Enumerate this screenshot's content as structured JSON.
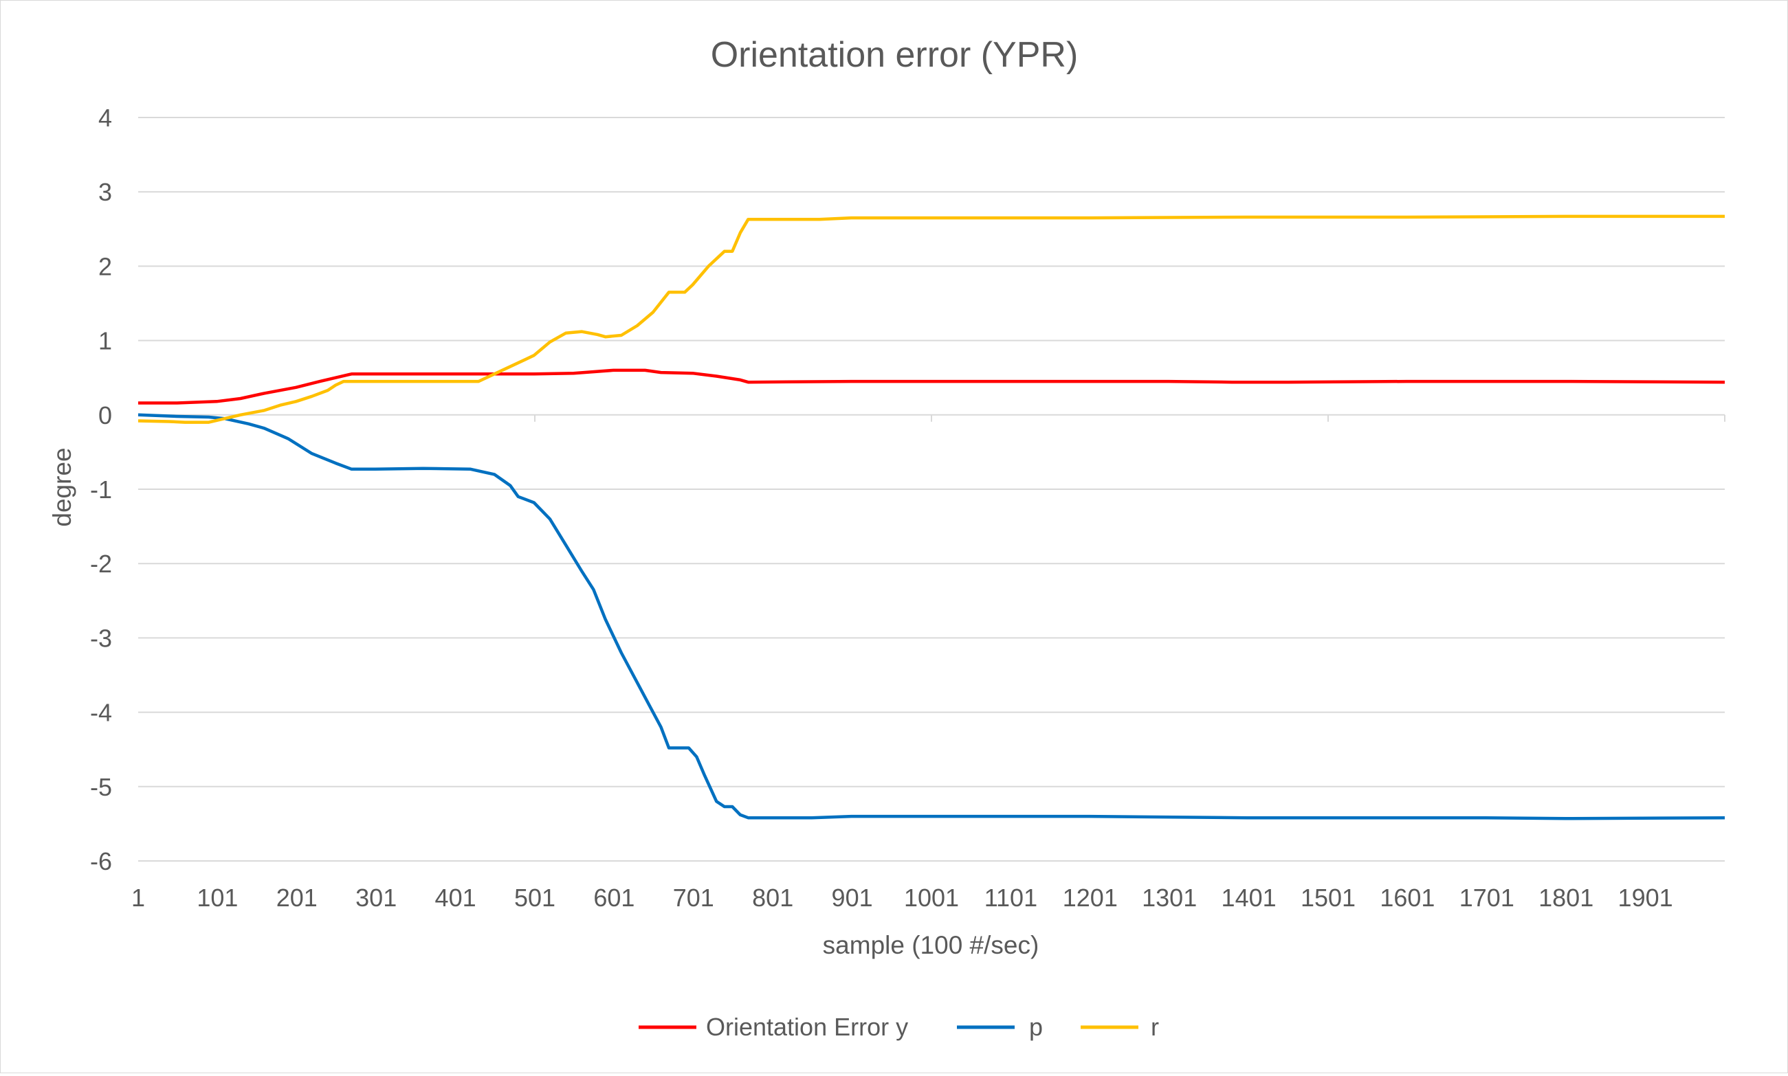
{
  "chart_data": {
    "type": "line",
    "title": "Orientation error (YPR)",
    "xlabel": "sample (100 #/sec)",
    "ylabel": "degree",
    "xlim": [
      1,
      2001
    ],
    "ylim": [
      -6,
      4
    ],
    "yticks": [
      4,
      3,
      2,
      1,
      0,
      -1,
      -2,
      -3,
      -4,
      -5,
      -6
    ],
    "xtick_labels": [
      "1",
      "101",
      "201",
      "301",
      "401",
      "501",
      "601",
      "701",
      "801",
      "901",
      "1001",
      "1101",
      "1201",
      "1301",
      "1401",
      "1501",
      "1601",
      "1701",
      "1801",
      "1901"
    ],
    "grid": true,
    "legend_position": "bottom",
    "series": [
      {
        "name": "Orientation Error y",
        "color": "#ff0000",
        "points": [
          [
            1,
            0.16
          ],
          [
            50,
            0.16
          ],
          [
            100,
            0.18
          ],
          [
            130,
            0.22
          ],
          [
            160,
            0.29
          ],
          [
            200,
            0.37
          ],
          [
            230,
            0.45
          ],
          [
            270,
            0.55
          ],
          [
            350,
            0.55
          ],
          [
            430,
            0.55
          ],
          [
            500,
            0.55
          ],
          [
            550,
            0.56
          ],
          [
            600,
            0.6
          ],
          [
            640,
            0.6
          ],
          [
            660,
            0.57
          ],
          [
            700,
            0.56
          ],
          [
            730,
            0.52
          ],
          [
            760,
            0.47
          ],
          [
            770,
            0.44
          ],
          [
            900,
            0.45
          ],
          [
            1100,
            0.45
          ],
          [
            1300,
            0.45
          ],
          [
            1380,
            0.44
          ],
          [
            1450,
            0.44
          ],
          [
            1600,
            0.45
          ],
          [
            1800,
            0.45
          ],
          [
            2001,
            0.44
          ]
        ]
      },
      {
        "name": "p",
        "color": "#0070c0",
        "points": [
          [
            1,
            0.0
          ],
          [
            50,
            -0.02
          ],
          [
            90,
            -0.03
          ],
          [
            110,
            -0.05
          ],
          [
            140,
            -0.12
          ],
          [
            160,
            -0.18
          ],
          [
            190,
            -0.32
          ],
          [
            220,
            -0.52
          ],
          [
            250,
            -0.65
          ],
          [
            270,
            -0.73
          ],
          [
            300,
            -0.73
          ],
          [
            360,
            -0.72
          ],
          [
            420,
            -0.73
          ],
          [
            450,
            -0.8
          ],
          [
            470,
            -0.95
          ],
          [
            480,
            -1.1
          ],
          [
            500,
            -1.18
          ],
          [
            520,
            -1.4
          ],
          [
            540,
            -1.75
          ],
          [
            560,
            -2.1
          ],
          [
            575,
            -2.35
          ],
          [
            590,
            -2.75
          ],
          [
            610,
            -3.2
          ],
          [
            630,
            -3.6
          ],
          [
            645,
            -3.9
          ],
          [
            660,
            -4.2
          ],
          [
            670,
            -4.48
          ],
          [
            695,
            -4.48
          ],
          [
            705,
            -4.6
          ],
          [
            715,
            -4.85
          ],
          [
            730,
            -5.2
          ],
          [
            740,
            -5.27
          ],
          [
            750,
            -5.27
          ],
          [
            760,
            -5.38
          ],
          [
            770,
            -5.42
          ],
          [
            850,
            -5.42
          ],
          [
            900,
            -5.4
          ],
          [
            1000,
            -5.4
          ],
          [
            1200,
            -5.4
          ],
          [
            1400,
            -5.42
          ],
          [
            1600,
            -5.42
          ],
          [
            1700,
            -5.42
          ],
          [
            1800,
            -5.43
          ],
          [
            2001,
            -5.42
          ]
        ]
      },
      {
        "name": "r",
        "color": "#ffc000",
        "points": [
          [
            1,
            -0.08
          ],
          [
            40,
            -0.09
          ],
          [
            60,
            -0.1
          ],
          [
            90,
            -0.1
          ],
          [
            110,
            -0.05
          ],
          [
            130,
            0.0
          ],
          [
            160,
            0.06
          ],
          [
            180,
            0.13
          ],
          [
            200,
            0.18
          ],
          [
            220,
            0.25
          ],
          [
            240,
            0.33
          ],
          [
            250,
            0.4
          ],
          [
            260,
            0.45
          ],
          [
            300,
            0.45
          ],
          [
            360,
            0.45
          ],
          [
            430,
            0.45
          ],
          [
            450,
            0.55
          ],
          [
            480,
            0.7
          ],
          [
            500,
            0.8
          ],
          [
            520,
            0.98
          ],
          [
            540,
            1.1
          ],
          [
            560,
            1.12
          ],
          [
            580,
            1.08
          ],
          [
            590,
            1.05
          ],
          [
            610,
            1.07
          ],
          [
            630,
            1.2
          ],
          [
            650,
            1.38
          ],
          [
            670,
            1.65
          ],
          [
            690,
            1.65
          ],
          [
            700,
            1.75
          ],
          [
            720,
            2.0
          ],
          [
            740,
            2.2
          ],
          [
            750,
            2.2
          ],
          [
            760,
            2.45
          ],
          [
            770,
            2.63
          ],
          [
            800,
            2.63
          ],
          [
            860,
            2.63
          ],
          [
            900,
            2.65
          ],
          [
            1000,
            2.65
          ],
          [
            1200,
            2.65
          ],
          [
            1400,
            2.66
          ],
          [
            1600,
            2.66
          ],
          [
            1800,
            2.67
          ],
          [
            2001,
            2.67
          ]
        ]
      }
    ]
  }
}
